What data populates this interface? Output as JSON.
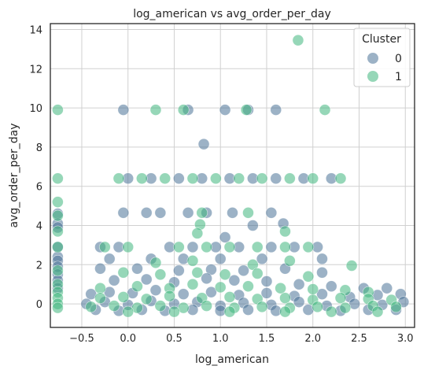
{
  "colors": {
    "cluster0": "#4a7298",
    "cluster1": "#40b77e",
    "grid": "#d0d0d0",
    "frame": "#262626"
  },
  "chart_data": {
    "type": "scatter",
    "title": "log_american vs avg_order_per_day",
    "xlabel": "log_american",
    "ylabel": "avg_order_per_day",
    "xlim": [
      -0.84,
      3.1
    ],
    "ylim": [
      -1.2,
      14.3
    ],
    "xticks": [
      "−0.5",
      "0.0",
      "0.5",
      "1.0",
      "1.5",
      "2.0",
      "2.5",
      "3.0"
    ],
    "yticks": [
      "0",
      "2",
      "4",
      "6",
      "8",
      "10",
      "12",
      "14"
    ],
    "grid": true,
    "legend": {
      "title": "Cluster",
      "placement": "top-right",
      "entries": [
        "0",
        "1"
      ]
    },
    "series": [
      {
        "name": "0",
        "color": "#4a7298",
        "points": [
          [
            -0.76,
            4.6
          ],
          [
            -0.76,
            4.1
          ],
          [
            -0.76,
            3.9
          ],
          [
            -0.76,
            2.9
          ],
          [
            -0.76,
            2.4
          ],
          [
            -0.76,
            2.2
          ],
          [
            -0.76,
            1.9
          ],
          [
            -0.76,
            1.5
          ],
          [
            -0.76,
            1.2
          ],
          [
            -0.76,
            0.8
          ],
          [
            -0.05,
            9.9
          ],
          [
            0.65,
            9.9
          ],
          [
            1.05,
            9.9
          ],
          [
            1.3,
            9.9
          ],
          [
            1.6,
            9.9
          ],
          [
            0.82,
            8.15
          ],
          [
            0.0,
            6.4
          ],
          [
            0.25,
            6.4
          ],
          [
            0.55,
            6.4
          ],
          [
            0.8,
            6.4
          ],
          [
            1.1,
            6.4
          ],
          [
            1.35,
            6.4
          ],
          [
            1.6,
            6.4
          ],
          [
            1.9,
            6.4
          ],
          [
            2.2,
            6.4
          ],
          [
            -0.05,
            4.65
          ],
          [
            0.2,
            4.65
          ],
          [
            0.35,
            4.65
          ],
          [
            0.65,
            4.65
          ],
          [
            0.85,
            4.65
          ],
          [
            1.13,
            4.65
          ],
          [
            1.55,
            4.65
          ],
          [
            1.68,
            4.1
          ],
          [
            1.35,
            4.0
          ],
          [
            1.05,
            3.4
          ],
          [
            -0.3,
            2.9
          ],
          [
            -0.1,
            2.9
          ],
          [
            0.45,
            2.9
          ],
          [
            0.7,
            2.9
          ],
          [
            0.95,
            2.9
          ],
          [
            1.2,
            2.9
          ],
          [
            1.55,
            2.9
          ],
          [
            1.8,
            2.9
          ],
          [
            2.05,
            2.9
          ],
          [
            -0.2,
            2.3
          ],
          [
            0.25,
            2.3
          ],
          [
            0.6,
            2.3
          ],
          [
            1.0,
            2.3
          ],
          [
            1.45,
            2.3
          ],
          [
            2.1,
            2.3
          ],
          [
            -0.3,
            1.8
          ],
          [
            0.1,
            1.8
          ],
          [
            0.55,
            1.7
          ],
          [
            0.9,
            1.75
          ],
          [
            1.25,
            1.7
          ],
          [
            1.7,
            1.8
          ],
          [
            2.1,
            1.6
          ],
          [
            -0.15,
            1.2
          ],
          [
            0.2,
            1.25
          ],
          [
            0.5,
            1.1
          ],
          [
            0.85,
            1.3
          ],
          [
            1.15,
            1.2
          ],
          [
            1.5,
            1.15
          ],
          [
            1.85,
            1.0
          ],
          [
            2.2,
            0.9
          ],
          [
            2.55,
            0.8
          ],
          [
            2.8,
            0.8
          ],
          [
            -0.4,
            0.5
          ],
          [
            -0.2,
            0.6
          ],
          [
            0.05,
            0.55
          ],
          [
            0.3,
            0.7
          ],
          [
            0.6,
            0.5
          ],
          [
            0.9,
            0.6
          ],
          [
            1.2,
            0.45
          ],
          [
            1.5,
            0.55
          ],
          [
            1.8,
            0.4
          ],
          [
            2.1,
            0.5
          ],
          [
            2.4,
            0.35
          ],
          [
            2.7,
            0.45
          ],
          [
            2.95,
            0.5
          ],
          [
            -0.45,
            0.0
          ],
          [
            -0.25,
            0.1
          ],
          [
            0.0,
            -0.05
          ],
          [
            0.25,
            0.15
          ],
          [
            0.5,
            0.0
          ],
          [
            0.75,
            0.1
          ],
          [
            1.0,
            -0.1
          ],
          [
            1.25,
            0.05
          ],
          [
            1.55,
            -0.05
          ],
          [
            1.85,
            0.1
          ],
          [
            2.15,
            -0.1
          ],
          [
            2.45,
            0.0
          ],
          [
            2.75,
            -0.05
          ],
          [
            2.98,
            0.1
          ],
          [
            -0.35,
            -0.3
          ],
          [
            -0.1,
            -0.35
          ],
          [
            0.15,
            -0.3
          ],
          [
            0.4,
            -0.35
          ],
          [
            0.7,
            -0.3
          ],
          [
            1.0,
            -0.35
          ],
          [
            1.3,
            -0.3
          ],
          [
            1.6,
            -0.35
          ],
          [
            1.95,
            -0.3
          ],
          [
            2.3,
            -0.35
          ],
          [
            2.6,
            -0.3
          ],
          [
            2.9,
            -0.3
          ]
        ]
      },
      {
        "name": "1",
        "color": "#40b77e",
        "points": [
          [
            -0.76,
            9.9
          ],
          [
            -0.76,
            6.4
          ],
          [
            -0.76,
            5.2
          ],
          [
            -0.76,
            4.5
          ],
          [
            -0.76,
            3.7
          ],
          [
            -0.76,
            2.9
          ],
          [
            -0.76,
            1.7
          ],
          [
            -0.76,
            1.0
          ],
          [
            -0.76,
            0.6
          ],
          [
            -0.76,
            0.3
          ],
          [
            -0.76,
            0.0
          ],
          [
            -0.76,
            -0.2
          ],
          [
            1.84,
            13.45
          ],
          [
            0.3,
            9.9
          ],
          [
            0.6,
            9.9
          ],
          [
            1.28,
            9.9
          ],
          [
            2.13,
            9.9
          ],
          [
            -0.1,
            6.4
          ],
          [
            0.15,
            6.4
          ],
          [
            0.4,
            6.4
          ],
          [
            0.7,
            6.4
          ],
          [
            0.95,
            6.4
          ],
          [
            1.2,
            6.4
          ],
          [
            1.45,
            6.4
          ],
          [
            1.75,
            6.4
          ],
          [
            2.0,
            6.4
          ],
          [
            2.3,
            6.4
          ],
          [
            0.8,
            4.65
          ],
          [
            1.3,
            4.65
          ],
          [
            0.78,
            4.05
          ],
          [
            0.75,
            3.6
          ],
          [
            1.7,
            3.7
          ],
          [
            -0.25,
            2.9
          ],
          [
            0.0,
            2.9
          ],
          [
            0.55,
            2.9
          ],
          [
            0.85,
            2.9
          ],
          [
            1.1,
            2.9
          ],
          [
            1.4,
            2.9
          ],
          [
            1.7,
            2.9
          ],
          [
            1.95,
            2.9
          ],
          [
            0.3,
            2.1
          ],
          [
            0.7,
            2.2
          ],
          [
            1.35,
            2.0
          ],
          [
            1.75,
            2.2
          ],
          [
            2.42,
            1.95
          ],
          [
            -0.05,
            1.6
          ],
          [
            0.35,
            1.5
          ],
          [
            0.75,
            1.6
          ],
          [
            1.05,
            1.5
          ],
          [
            1.4,
            1.55
          ],
          [
            1.95,
            1.4
          ],
          [
            -0.3,
            0.8
          ],
          [
            0.1,
            0.9
          ],
          [
            0.45,
            0.8
          ],
          [
            0.7,
            1.0
          ],
          [
            1.0,
            0.85
          ],
          [
            1.3,
            0.9
          ],
          [
            1.65,
            0.8
          ],
          [
            2.0,
            0.75
          ],
          [
            2.35,
            0.7
          ],
          [
            2.6,
            0.6
          ],
          [
            -0.3,
            0.3
          ],
          [
            -0.05,
            0.35
          ],
          [
            0.2,
            0.25
          ],
          [
            0.45,
            0.4
          ],
          [
            0.8,
            0.3
          ],
          [
            1.1,
            0.35
          ],
          [
            1.4,
            0.25
          ],
          [
            1.7,
            0.3
          ],
          [
            2.0,
            0.2
          ],
          [
            2.3,
            0.3
          ],
          [
            2.6,
            0.25
          ],
          [
            2.85,
            0.2
          ],
          [
            -0.4,
            -0.15
          ],
          [
            -0.15,
            -0.1
          ],
          [
            0.1,
            -0.2
          ],
          [
            0.35,
            -0.1
          ],
          [
            0.6,
            -0.2
          ],
          [
            0.85,
            -0.1
          ],
          [
            1.15,
            -0.2
          ],
          [
            1.45,
            -0.15
          ],
          [
            1.75,
            -0.2
          ],
          [
            2.05,
            -0.15
          ],
          [
            2.35,
            -0.2
          ],
          [
            2.65,
            -0.1
          ],
          [
            2.9,
            -0.15
          ],
          [
            0.0,
            -0.4
          ],
          [
            0.5,
            -0.4
          ],
          [
            1.1,
            -0.4
          ],
          [
            1.7,
            -0.4
          ],
          [
            2.2,
            -0.4
          ],
          [
            2.7,
            -0.4
          ]
        ]
      }
    ]
  }
}
